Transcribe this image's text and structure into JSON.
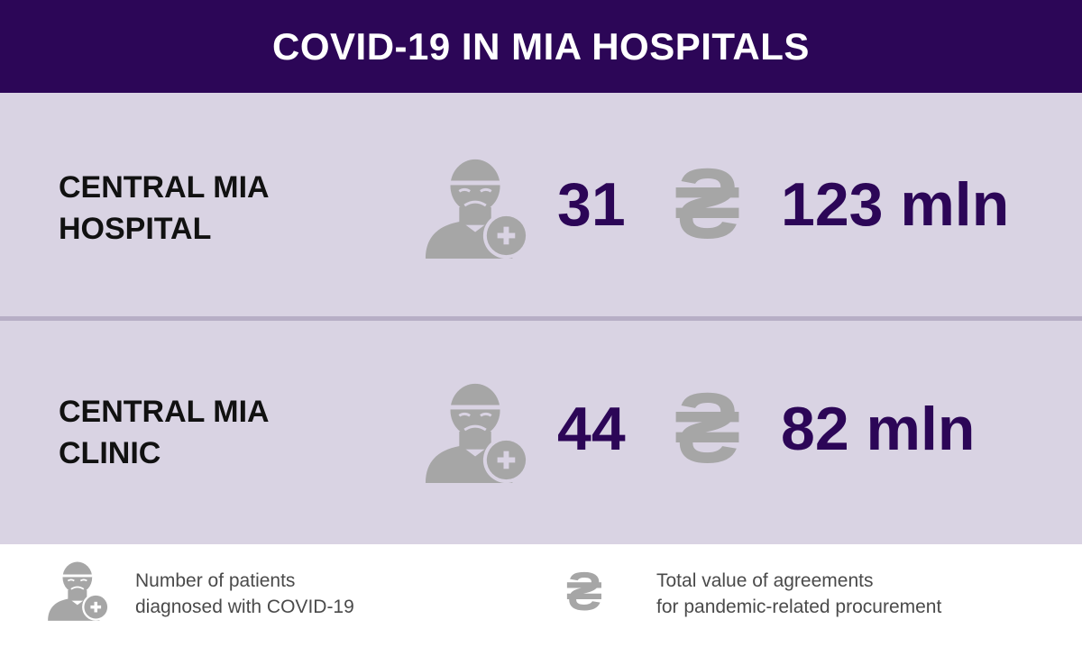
{
  "header": {
    "title": "COVID-19 IN MIA HOSPITALS"
  },
  "rows": [
    {
      "name_line1": "CENTRAL MIA",
      "name_line2": "HOSPITAL",
      "patients": "31",
      "currency_icon": "₴",
      "amount": "123 mln"
    },
    {
      "name_line1": "CENTRAL MIA",
      "name_line2": "CLINIC",
      "patients": "44",
      "currency_icon": "₴",
      "amount": "82 mln"
    }
  ],
  "legend": {
    "patients_line1": "Number of patients",
    "patients_line2": "diagnosed with COVID-19",
    "currency_icon": "₴",
    "amount_line1": "Total value of agreements",
    "amount_line2": "for pandemic-related procurement"
  },
  "colors": {
    "header_bg": "#2c0657",
    "row_bg": "#d9d3e3",
    "value": "#2c0657",
    "icon": "#a6a6a6"
  }
}
